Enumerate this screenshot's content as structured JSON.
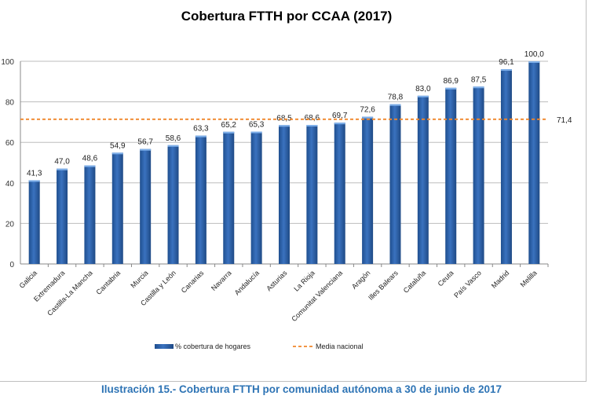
{
  "chart_data": {
    "type": "bar",
    "title": "Cobertura FTTH por CCAA (2017)",
    "xlabel": "",
    "ylabel": "",
    "ylim": [
      0,
      100
    ],
    "yticks": [
      "0",
      "20",
      "40",
      "60",
      "80",
      "100"
    ],
    "grid": true,
    "legend_position": "bottom",
    "categories": [
      "Galicia",
      "Extremadura",
      "Castilla-La Mancha",
      "Cantabria",
      "Murcia",
      "Castilla y León",
      "Canarias",
      "Navarra",
      "Andalucía",
      "Asturias",
      "La Rioja",
      "Comunitat Valenciana",
      "Aragón",
      "Illes Balears",
      "Cataluña",
      "Ceuta",
      "País Vasco",
      "Madrid",
      "Melilla"
    ],
    "series": [
      {
        "name": "% cobertura de hogares",
        "type": "bar",
        "color": "#2e5fa3",
        "values": [
          41.3,
          47.0,
          48.6,
          54.9,
          56.7,
          58.6,
          63.3,
          65.2,
          65.3,
          68.5,
          68.6,
          69.7,
          72.6,
          78.8,
          83.0,
          86.9,
          87.5,
          96.1,
          100.0
        ],
        "labels": [
          "41,3",
          "47,0",
          "48,6",
          "54,9",
          "56,7",
          "58,6",
          "63,3",
          "65,2",
          "65,3",
          "68,5",
          "68,6",
          "69,7",
          "72,6",
          "78,8",
          "83,0",
          "86,9",
          "87,5",
          "96,1",
          "100,0"
        ]
      },
      {
        "name": "Media nacional",
        "type": "line",
        "style": "dashed",
        "color": "#f0862a",
        "value": 71.4,
        "label": "71,4"
      }
    ]
  },
  "caption": "Ilustración 15.- Cobertura FTTH por comunidad autónoma a 30 de junio de 2017"
}
